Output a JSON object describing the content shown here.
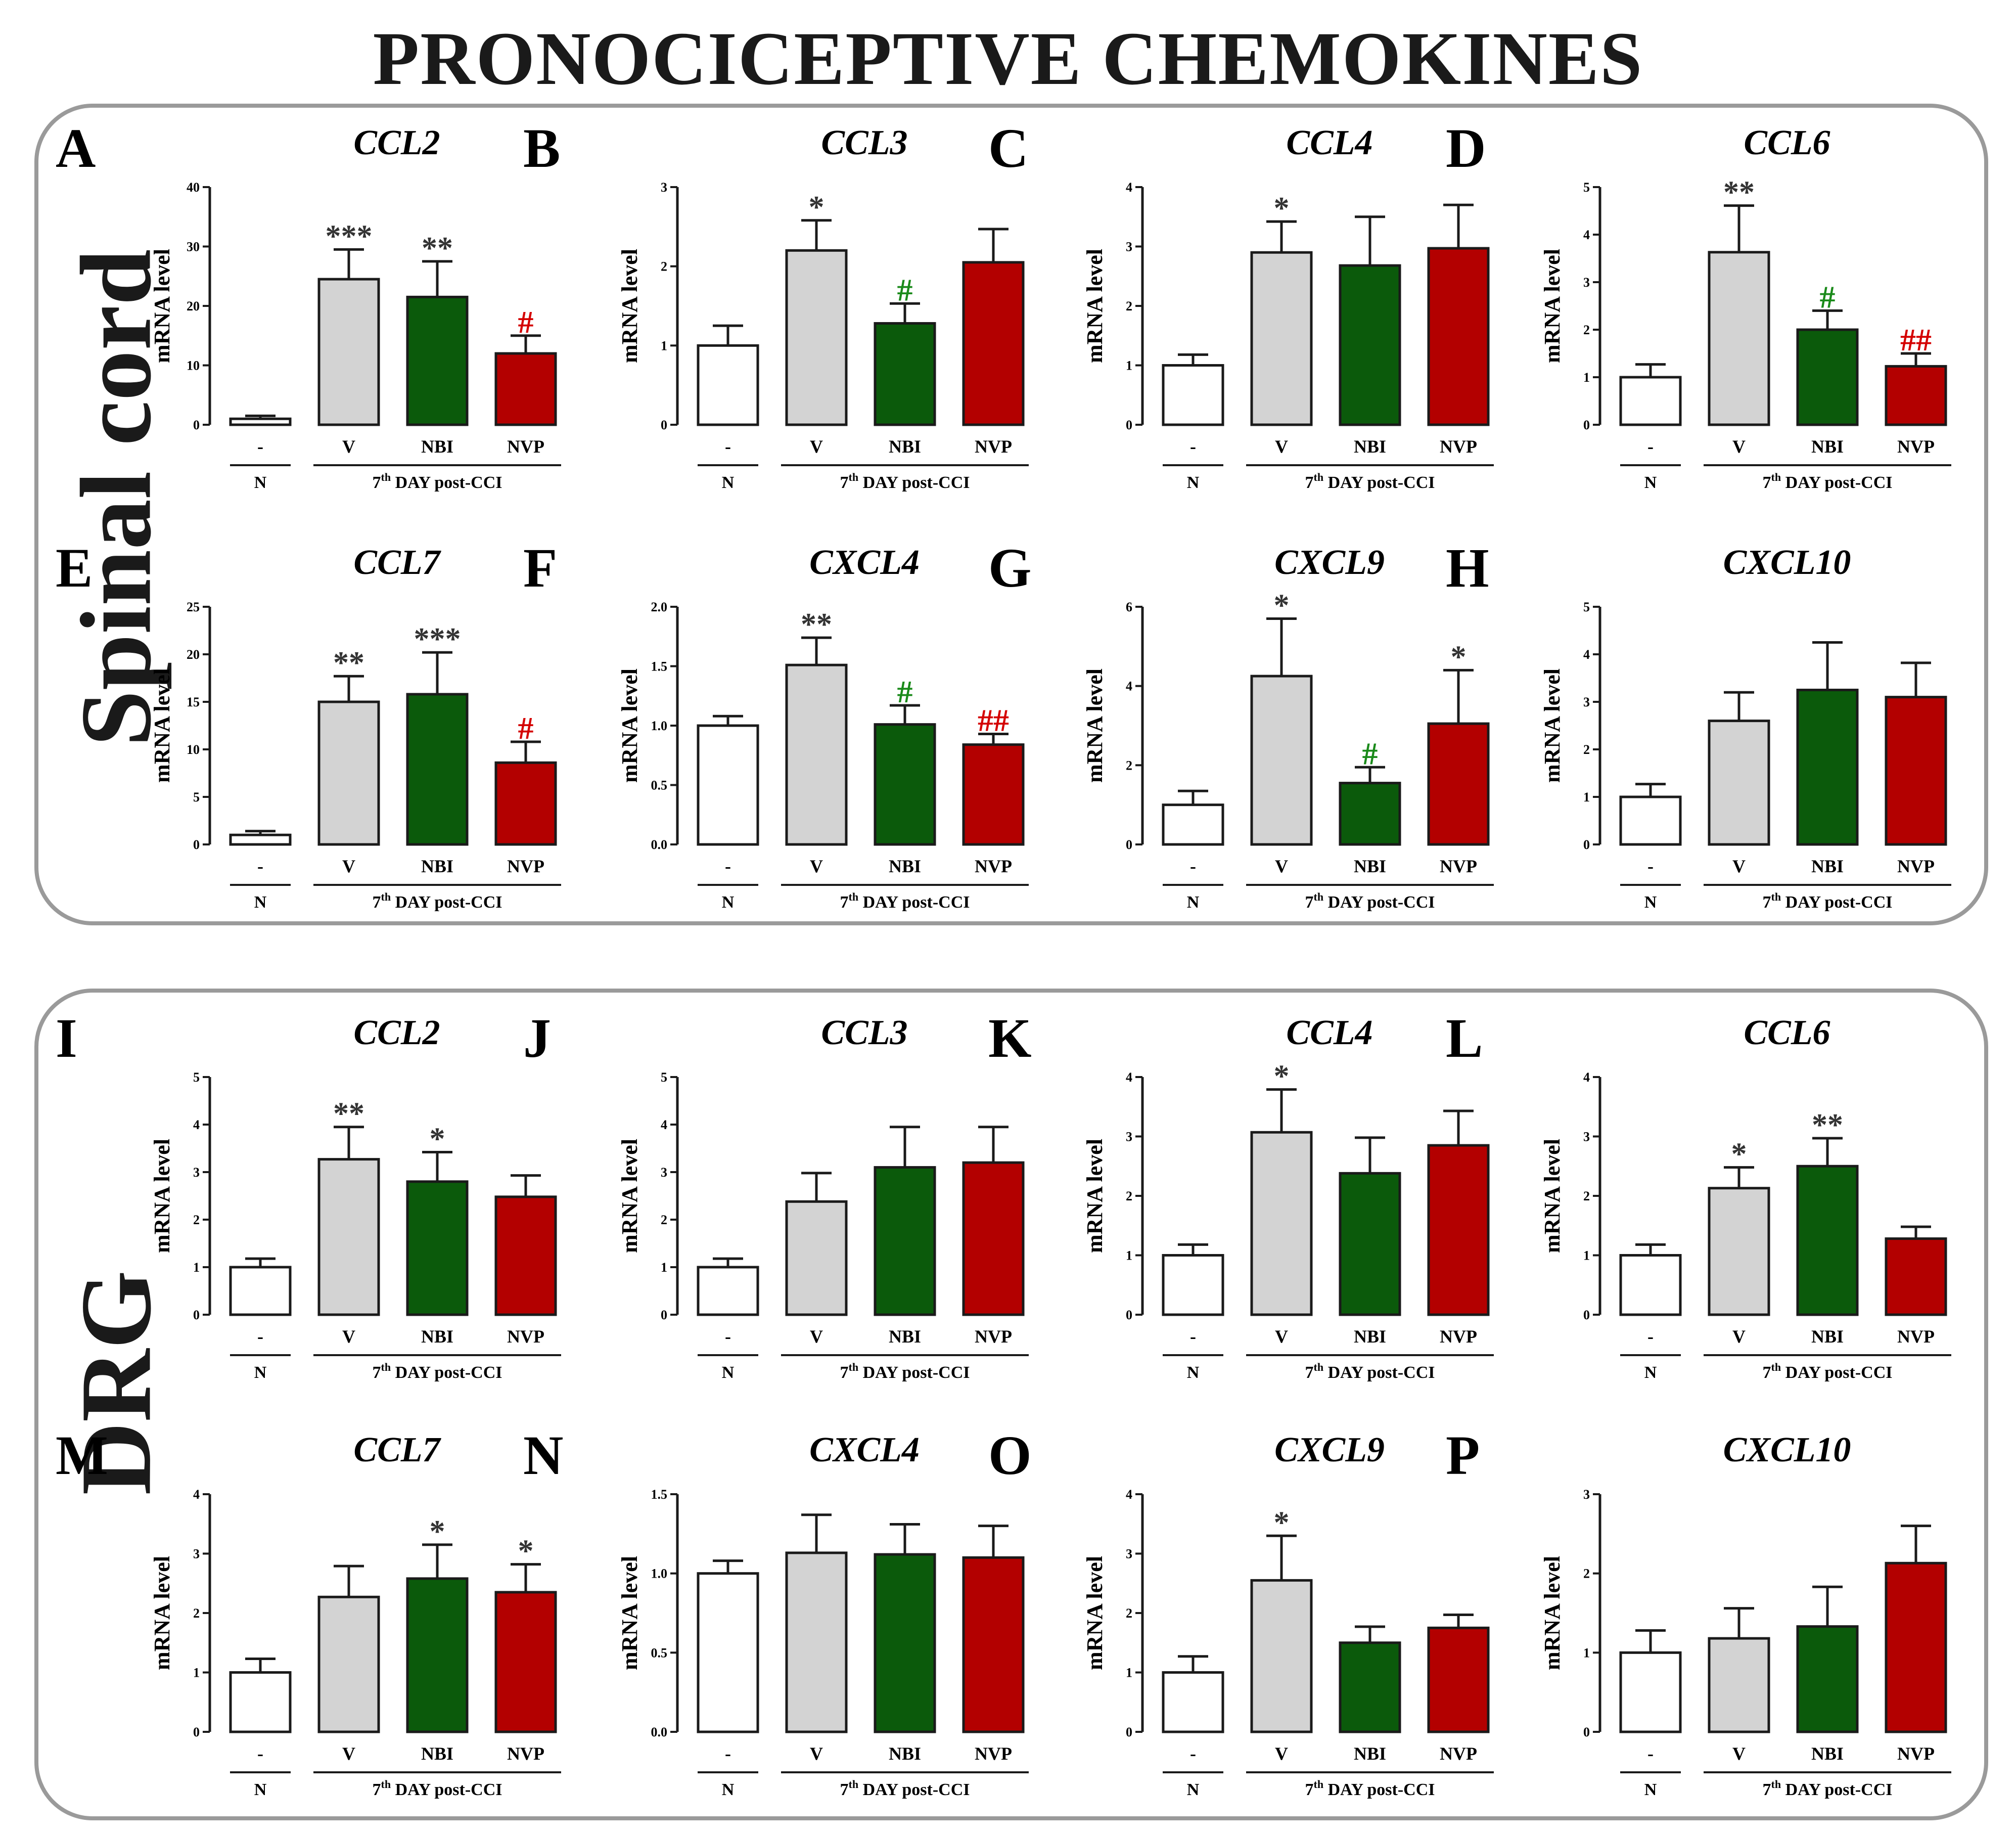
{
  "title": "PRONOCICEPTIVE CHEMOKINES",
  "sections": [
    {
      "label": "Spinal cord"
    },
    {
      "label": "DRG"
    }
  ],
  "axis": {
    "ylabel": "mRNA level",
    "group_left": "N",
    "group_right": "7th DAY post-CCI",
    "categories": [
      "-",
      "V",
      "NBI",
      "NVP"
    ]
  },
  "colors": {
    "N": "#ffffff",
    "V": "#d3d3d3",
    "NBI": "#0b5a0b",
    "NVP": "#b30000",
    "stroke": "#1a1a1a",
    "green_sig": "#1a8a1a",
    "red_sig": "#d40000",
    "black_sig": "#333333",
    "frame": "#9a9a9a"
  },
  "chart_data": [
    {
      "panel": "A",
      "title": "CCL2",
      "type": "bar",
      "categories": [
        "-",
        "V",
        "NBI",
        "NVP"
      ],
      "values": [
        1,
        24.5,
        21.5,
        12
      ],
      "errors": [
        0.5,
        5,
        6,
        3
      ],
      "ylim": [
        0,
        40
      ],
      "yticks": [
        "0",
        "10",
        "20",
        "30",
        "40"
      ],
      "sig": [
        "",
        "***",
        "**",
        "#"
      ],
      "sigcolor": [
        "",
        "black",
        "black",
        "red"
      ]
    },
    {
      "panel": "B",
      "title": "CCL3",
      "type": "bar",
      "categories": [
        "-",
        "V",
        "NBI",
        "NVP"
      ],
      "values": [
        1,
        2.2,
        1.28,
        2.05
      ],
      "errors": [
        0.25,
        0.38,
        0.25,
        0.42
      ],
      "ylim": [
        0,
        3
      ],
      "yticks": [
        "0",
        "1",
        "2",
        "3"
      ],
      "sig": [
        "",
        "*",
        "#",
        ""
      ],
      "sigcolor": [
        "",
        "black",
        "green",
        ""
      ]
    },
    {
      "panel": "C",
      "title": "CCL4",
      "type": "bar",
      "categories": [
        "-",
        "V",
        "NBI",
        "NVP"
      ],
      "values": [
        1,
        2.9,
        2.68,
        2.97
      ],
      "errors": [
        0.18,
        0.52,
        0.82,
        0.73
      ],
      "ylim": [
        0,
        4
      ],
      "yticks": [
        "0",
        "1",
        "2",
        "3",
        "4"
      ],
      "sig": [
        "",
        "*",
        "",
        ""
      ],
      "sigcolor": [
        "",
        "black",
        "",
        ""
      ]
    },
    {
      "panel": "D",
      "title": "CCL6",
      "type": "bar",
      "categories": [
        "-",
        "V",
        "NBI",
        "NVP"
      ],
      "values": [
        1,
        3.63,
        2,
        1.23
      ],
      "errors": [
        0.27,
        0.98,
        0.4,
        0.27
      ],
      "ylim": [
        0,
        5
      ],
      "yticks": [
        "0",
        "1",
        "2",
        "3",
        "4",
        "5"
      ],
      "sig": [
        "",
        "**",
        "#",
        "##"
      ],
      "sigcolor": [
        "",
        "black",
        "green",
        "red"
      ]
    },
    {
      "panel": "E",
      "title": "CCL7",
      "type": "bar",
      "categories": [
        "-",
        "V",
        "NBI",
        "NVP"
      ],
      "values": [
        1,
        15,
        15.8,
        8.6
      ],
      "errors": [
        0.4,
        2.7,
        4.4,
        2.2
      ],
      "ylim": [
        0,
        25
      ],
      "yticks": [
        "0",
        "5",
        "10",
        "15",
        "20",
        "25"
      ],
      "sig": [
        "",
        "**",
        "***",
        "#"
      ],
      "sigcolor": [
        "",
        "black",
        "black",
        "red"
      ]
    },
    {
      "panel": "F",
      "title": "CXCL4",
      "type": "bar",
      "categories": [
        "-",
        "V",
        "NBI",
        "NVP"
      ],
      "values": [
        1,
        1.51,
        1.01,
        0.84
      ],
      "errors": [
        0.08,
        0.23,
        0.16,
        0.09
      ],
      "ylim": [
        0,
        2.0
      ],
      "yticks": [
        "0.0",
        "0.5",
        "1.0",
        "1.5",
        "2.0"
      ],
      "sig": [
        "",
        "**",
        "#",
        "##"
      ],
      "sigcolor": [
        "",
        "black",
        "green",
        "red"
      ]
    },
    {
      "panel": "G",
      "title": "CXCL9",
      "type": "bar",
      "categories": [
        "-",
        "V",
        "NBI",
        "NVP"
      ],
      "values": [
        1,
        4.25,
        1.55,
        3.05
      ],
      "errors": [
        0.35,
        1.45,
        0.4,
        1.35
      ],
      "ylim": [
        0,
        6
      ],
      "yticks": [
        "0",
        "2",
        "4",
        "6"
      ],
      "sig": [
        "",
        "*",
        "#",
        "*"
      ],
      "sigcolor": [
        "",
        "black",
        "green",
        "black"
      ]
    },
    {
      "panel": "H",
      "title": "CXCL10",
      "type": "bar",
      "categories": [
        "-",
        "V",
        "NBI",
        "NVP"
      ],
      "values": [
        1,
        2.6,
        3.25,
        3.1
      ],
      "errors": [
        0.27,
        0.6,
        1.0,
        0.72
      ],
      "ylim": [
        0,
        5
      ],
      "yticks": [
        "0",
        "1",
        "2",
        "3",
        "4",
        "5"
      ],
      "sig": [
        "",
        "",
        "",
        ""
      ],
      "sigcolor": [
        "",
        "",
        "",
        ""
      ]
    },
    {
      "panel": "I",
      "title": "CCL2",
      "type": "bar",
      "categories": [
        "-",
        "V",
        "NBI",
        "NVP"
      ],
      "values": [
        1,
        3.27,
        2.8,
        2.48
      ],
      "errors": [
        0.18,
        0.68,
        0.62,
        0.45
      ],
      "ylim": [
        0,
        5
      ],
      "yticks": [
        "0",
        "1",
        "2",
        "3",
        "4",
        "5"
      ],
      "sig": [
        "",
        "**",
        "*",
        ""
      ],
      "sigcolor": [
        "",
        "black",
        "black",
        ""
      ]
    },
    {
      "panel": "J",
      "title": "CCL3",
      "type": "bar",
      "categories": [
        "-",
        "V",
        "NBI",
        "NVP"
      ],
      "values": [
        1,
        2.38,
        3.1,
        3.2
      ],
      "errors": [
        0.18,
        0.6,
        0.85,
        0.75
      ],
      "ylim": [
        0,
        5
      ],
      "yticks": [
        "0",
        "1",
        "2",
        "3",
        "4",
        "5"
      ],
      "sig": [
        "",
        "",
        "",
        ""
      ],
      "sigcolor": [
        "",
        "",
        "",
        ""
      ]
    },
    {
      "panel": "K",
      "title": "CCL4",
      "type": "bar",
      "categories": [
        "-",
        "V",
        "NBI",
        "NVP"
      ],
      "values": [
        1,
        3.07,
        2.38,
        2.85
      ],
      "errors": [
        0.18,
        0.72,
        0.6,
        0.58
      ],
      "ylim": [
        0,
        4
      ],
      "yticks": [
        "0",
        "1",
        "2",
        "3",
        "4"
      ],
      "sig": [
        "",
        "*",
        "",
        ""
      ],
      "sigcolor": [
        "",
        "black",
        "",
        ""
      ]
    },
    {
      "panel": "L",
      "title": "CCL6",
      "type": "bar",
      "categories": [
        "-",
        "V",
        "NBI",
        "NVP"
      ],
      "values": [
        1,
        2.13,
        2.5,
        1.28
      ],
      "errors": [
        0.18,
        0.35,
        0.47,
        0.2
      ],
      "ylim": [
        0,
        4
      ],
      "yticks": [
        "0",
        "1",
        "2",
        "3",
        "4"
      ],
      "sig": [
        "",
        "*",
        "**",
        ""
      ],
      "sigcolor": [
        "",
        "black",
        "black",
        ""
      ]
    },
    {
      "panel": "M",
      "title": "CCL7",
      "type": "bar",
      "categories": [
        "-",
        "V",
        "NBI",
        "NVP"
      ],
      "values": [
        1,
        2.27,
        2.58,
        2.35
      ],
      "errors": [
        0.23,
        0.52,
        0.57,
        0.47
      ],
      "ylim": [
        0,
        4
      ],
      "yticks": [
        "0",
        "1",
        "2",
        "3",
        "4"
      ],
      "sig": [
        "",
        "",
        "*",
        "*"
      ],
      "sigcolor": [
        "",
        "",
        "black",
        "black"
      ]
    },
    {
      "panel": "N",
      "title": "CXCL4",
      "type": "bar",
      "categories": [
        "-",
        "V",
        "NBI",
        "NVP"
      ],
      "values": [
        1,
        1.13,
        1.12,
        1.1
      ],
      "errors": [
        0.08,
        0.24,
        0.19,
        0.2
      ],
      "ylim": [
        0,
        1.5
      ],
      "yticks": [
        "0.0",
        "0.5",
        "1.0",
        "1.5"
      ],
      "sig": [
        "",
        "",
        "",
        ""
      ],
      "sigcolor": [
        "",
        "",
        "",
        ""
      ]
    },
    {
      "panel": "O",
      "title": "CXCL9",
      "type": "bar",
      "categories": [
        "-",
        "V",
        "NBI",
        "NVP"
      ],
      "values": [
        1,
        2.55,
        1.5,
        1.75
      ],
      "errors": [
        0.27,
        0.75,
        0.27,
        0.22
      ],
      "ylim": [
        0,
        4
      ],
      "yticks": [
        "0",
        "1",
        "2",
        "3",
        "4"
      ],
      "sig": [
        "",
        "*",
        "",
        ""
      ],
      "sigcolor": [
        "",
        "black",
        "",
        ""
      ]
    },
    {
      "panel": "P",
      "title": "CXCL10",
      "type": "bar",
      "categories": [
        "-",
        "V",
        "NBI",
        "NVP"
      ],
      "values": [
        1,
        1.18,
        1.33,
        2.13
      ],
      "errors": [
        0.28,
        0.38,
        0.5,
        0.47
      ],
      "ylim": [
        0,
        3
      ],
      "yticks": [
        "0",
        "1",
        "2",
        "3"
      ],
      "sig": [
        "",
        "",
        "",
        ""
      ],
      "sigcolor": [
        "",
        "",
        "",
        ""
      ]
    }
  ]
}
